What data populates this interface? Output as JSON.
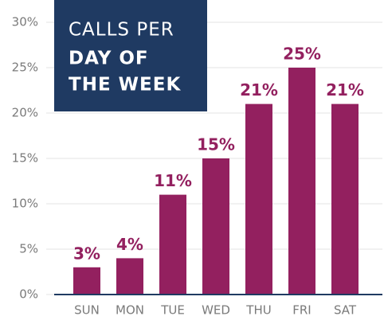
{
  "chart_data": {
    "type": "bar",
    "title_lines": [
      "CALLS PER",
      "DAY OF",
      "THE WEEK"
    ],
    "categories": [
      "SUN",
      "MON",
      "TUE",
      "WED",
      "THU",
      "FRI",
      "SAT"
    ],
    "values": [
      3,
      4,
      11,
      15,
      21,
      25,
      21
    ],
    "value_labels": [
      "3%",
      "4%",
      "11%",
      "15%",
      "21%",
      "25%",
      "21%"
    ],
    "color": "#93205f",
    "ylim": [
      0,
      30
    ],
    "yticks": [
      {
        "value": 0,
        "label": "0%"
      },
      {
        "value": 5,
        "label": "5%"
      },
      {
        "value": 10,
        "label": "10%"
      },
      {
        "value": 15,
        "label": "15%"
      },
      {
        "value": 20,
        "label": "20%"
      },
      {
        "value": 25,
        "label": "25%"
      },
      {
        "value": 30,
        "label": "30%"
      }
    ],
    "grid": true
  }
}
